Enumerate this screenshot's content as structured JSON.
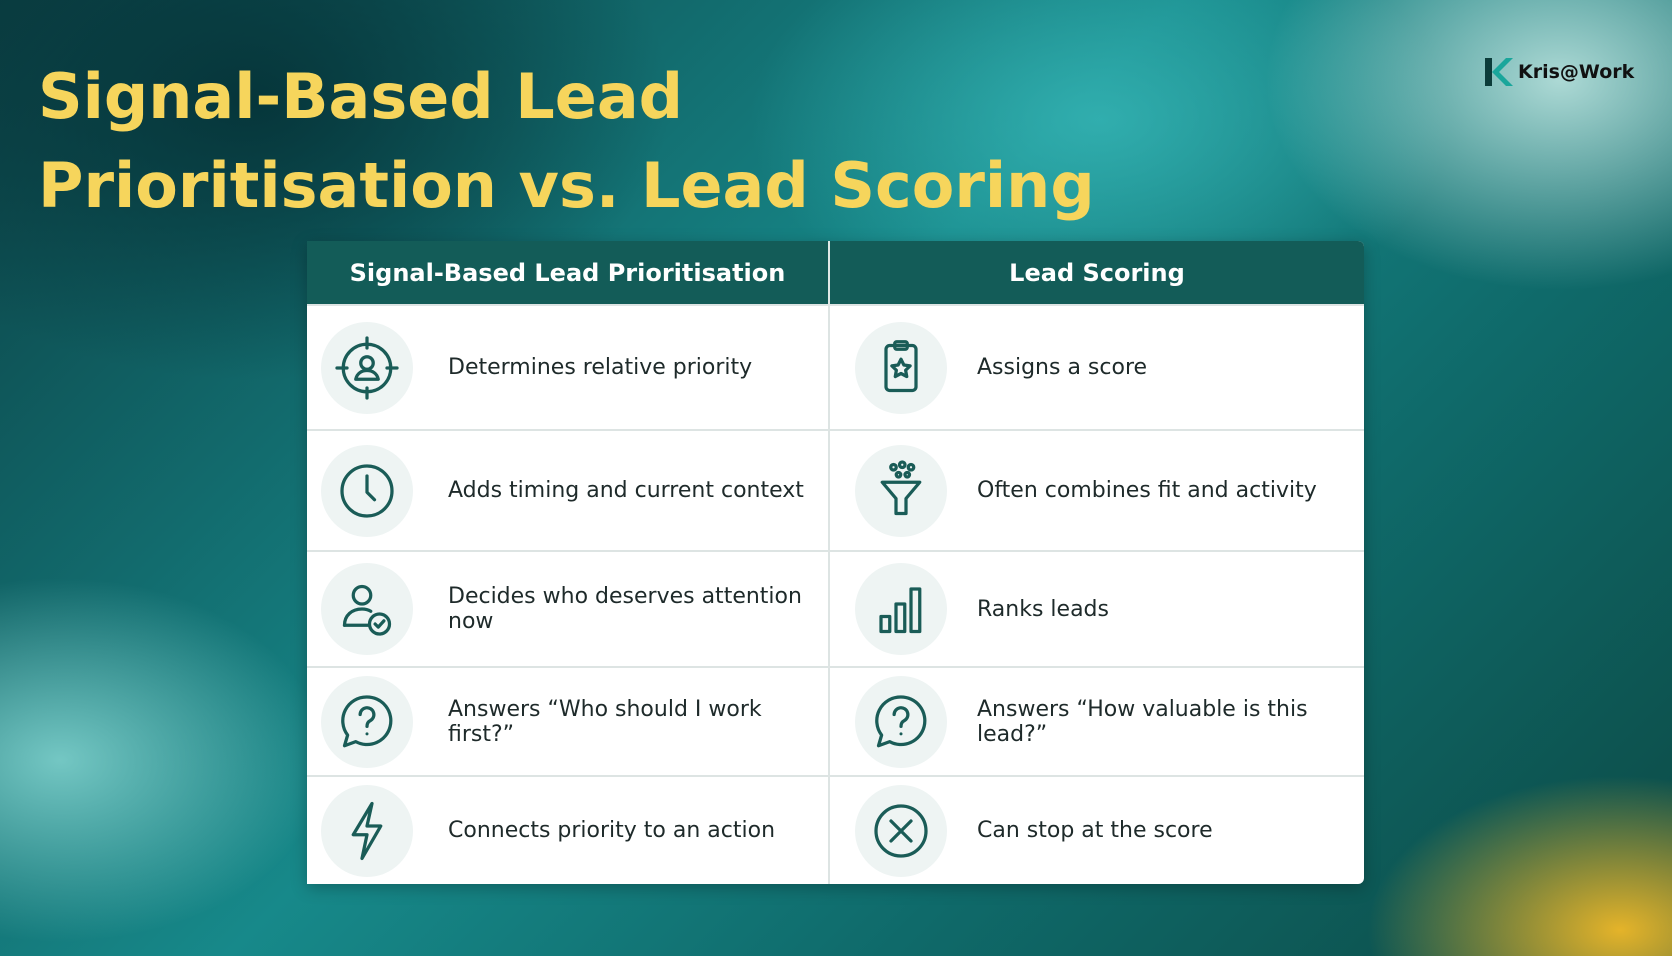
{
  "header": {
    "title_lines": [
      "Signal-Based Lead",
      "Prioritisation vs. Lead Scoring"
    ],
    "logo": "Kris@Work"
  },
  "table": {
    "columns": [
      "Signal-Based Lead Prioritisation",
      "Lead Scoring"
    ],
    "rows": [
      [
        "Determines relative priority",
        "Assigns a score"
      ],
      [
        "Adds timing and current context",
        "Often combines fit and activity"
      ],
      [
        "Decides who deserves attention now",
        "Ranks leads"
      ],
      [
        "Answers “Who should I work first?”",
        "Answers “How valuable is this lead?”"
      ],
      [
        "Connects priority to an action",
        "Can stop at the score"
      ]
    ]
  }
}
